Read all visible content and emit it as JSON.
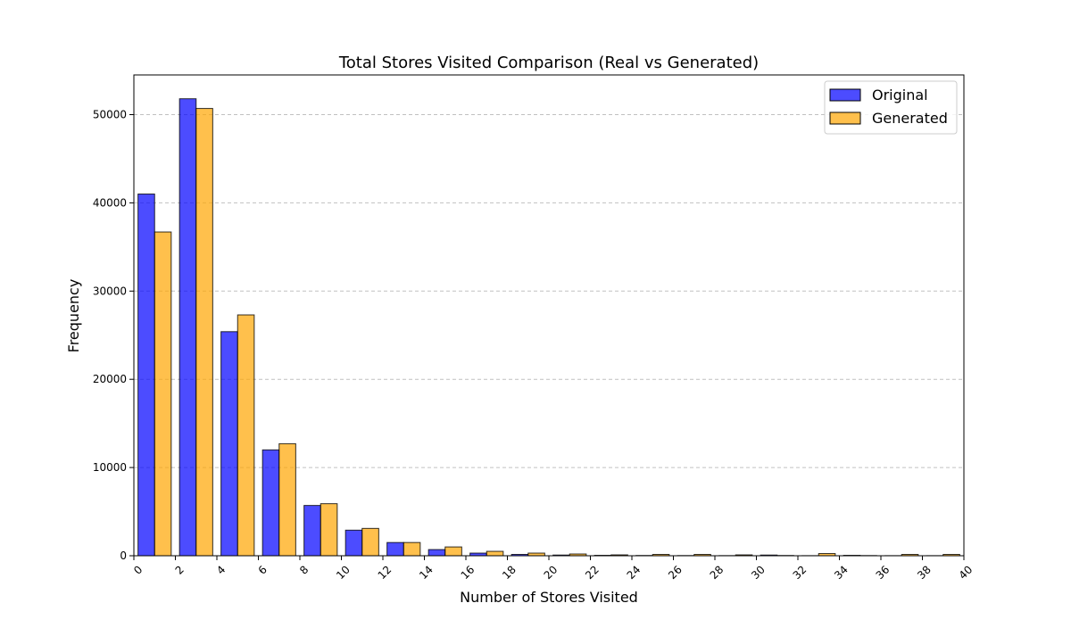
{
  "chart_data": {
    "type": "bar",
    "title": "Total Stores Visited Comparison (Real vs Generated)",
    "xlabel": "Number of Stores Visited",
    "ylabel": "Frequency",
    "xlim": [
      0,
      40
    ],
    "ylim": [
      0,
      54500
    ],
    "x_ticks": [
      0,
      2,
      4,
      6,
      8,
      10,
      12,
      14,
      16,
      18,
      20,
      22,
      24,
      26,
      28,
      30,
      32,
      34,
      36,
      38,
      40
    ],
    "y_ticks": [
      0,
      10000,
      20000,
      30000,
      40000,
      50000
    ],
    "grid": "y-dashed",
    "legend_position": "top-right",
    "bin_starts": [
      0,
      2,
      4,
      6,
      8,
      10,
      12,
      14,
      16,
      18,
      20,
      22,
      24,
      26,
      28,
      30,
      32,
      34,
      36,
      38
    ],
    "bin_width": 2,
    "series": [
      {
        "name": "Original",
        "color": "#0000ff",
        "values": [
          41000,
          51800,
          25400,
          12000,
          5700,
          2900,
          1500,
          700,
          300,
          150,
          80,
          50,
          30,
          20,
          15,
          80,
          10,
          50,
          10,
          10
        ]
      },
      {
        "name": "Generated",
        "color": "#ffa500",
        "values": [
          36700,
          50700,
          27300,
          12700,
          5900,
          3100,
          1500,
          1000,
          500,
          300,
          200,
          100,
          150,
          150,
          100,
          30,
          250,
          20,
          150,
          150
        ]
      }
    ]
  }
}
